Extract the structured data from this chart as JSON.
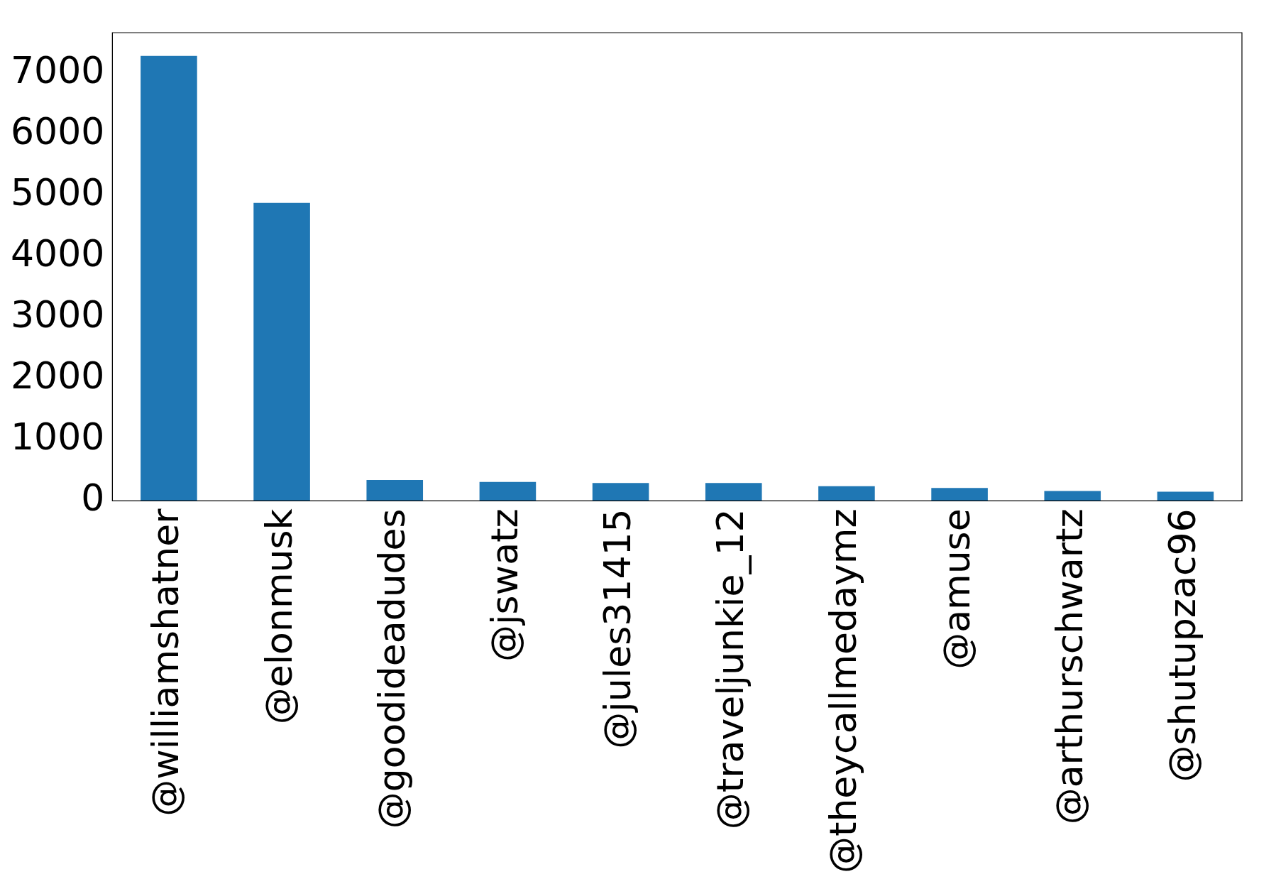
{
  "chart_data": {
    "type": "bar",
    "categories": [
      "@williamshatner",
      "@elonmusk",
      "@goodideadudes",
      "@jswatz",
      "@jules31415",
      "@traveljunkie_12",
      "@theycallmedaymz",
      "@amuse",
      "@arthurschwartz",
      "@shutupzac96"
    ],
    "values": [
      7290,
      4880,
      340,
      310,
      290,
      290,
      240,
      210,
      160,
      150
    ],
    "color": "#1f77b4",
    "ylim": [
      0,
      7670
    ],
    "yticks": [
      0,
      1000,
      2000,
      3000,
      4000,
      5000,
      6000,
      7000
    ],
    "grid": false,
    "legend": false
  }
}
